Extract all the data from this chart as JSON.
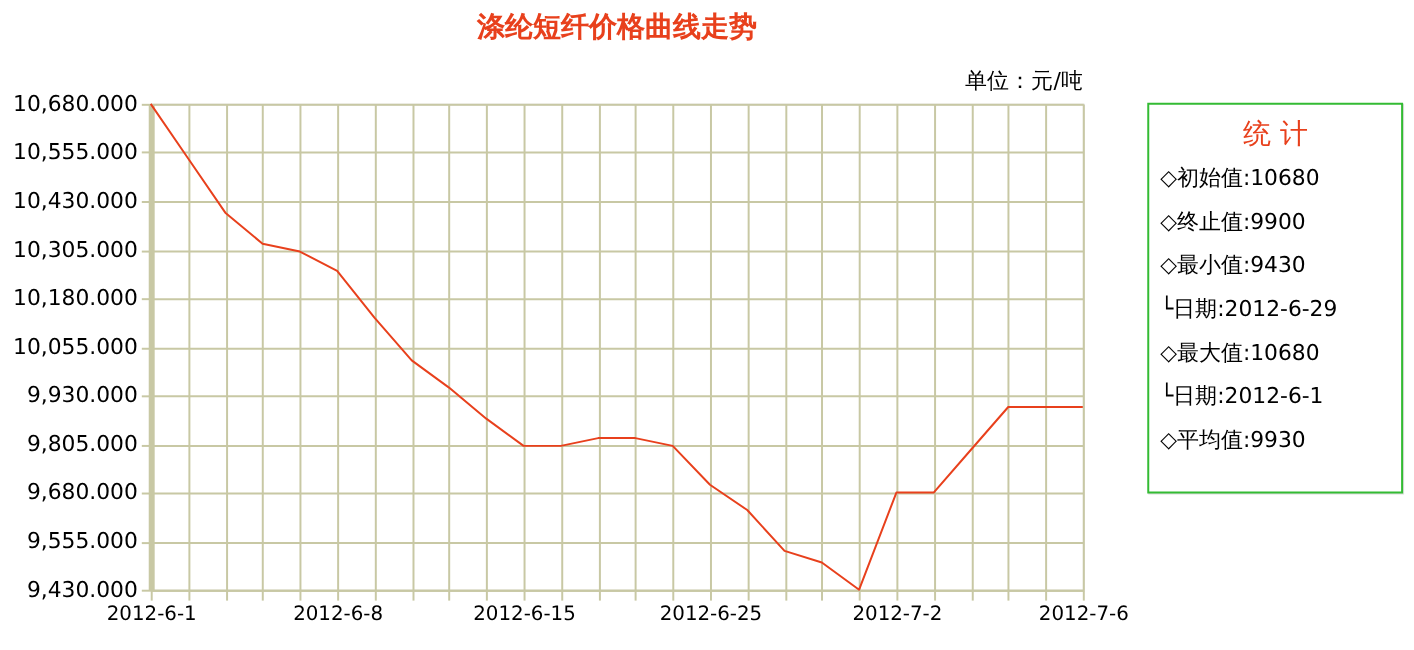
{
  "chart_data": {
    "type": "line",
    "title": "涤纶短纤价格曲线走势",
    "categories": [
      "2012-6-1",
      null,
      null,
      null,
      null,
      "2012-6-8",
      null,
      null,
      null,
      null,
      "2012-6-15",
      null,
      null,
      null,
      null,
      "2012-6-25",
      null,
      null,
      null,
      null,
      "2012-7-2",
      null,
      null,
      null,
      null,
      "2012-7-6"
    ],
    "series": [
      {
        "color": "#e8401c",
        "values": [
          10680,
          10540,
          10400,
          10320,
          10300,
          10250,
          10130,
          10020,
          9950,
          9870,
          9800,
          9800,
          9820,
          9820,
          9800,
          9700,
          9635,
          9530,
          9500,
          9430,
          9680,
          9680,
          9790,
          9900,
          9900,
          9900
        ]
      }
    ],
    "ylim": [
      9430,
      10680
    ],
    "yticks": [
      {
        "value": 9430,
        "label": "9,430.000"
      },
      {
        "value": 9555,
        "label": "9,555.000"
      },
      {
        "value": 9680,
        "label": "9,680.000"
      },
      {
        "value": 9805,
        "label": "9,805.000"
      },
      {
        "value": 9930,
        "label": "9,930.000"
      },
      {
        "value": 10055,
        "label": "10,055.000"
      },
      {
        "value": 10180,
        "label": "10,180.000"
      },
      {
        "value": 10305,
        "label": "10,305.000"
      },
      {
        "value": 10430,
        "label": "10,430.000"
      },
      {
        "value": 10555,
        "label": "10,555.000"
      },
      {
        "value": 10680,
        "label": "10,680.000"
      }
    ],
    "grid": true,
    "marker": "none",
    "line_style": "solid",
    "annotations": [
      "单位：元/吨",
      "统 计",
      "◇初始值:10680",
      "◇终止值:9900",
      "◇最小值:9430",
      "└日期:2012-6-29",
      "◇最大值:10680",
      "└日期:2012-6-1",
      "◇平均值:9930"
    ]
  }
}
